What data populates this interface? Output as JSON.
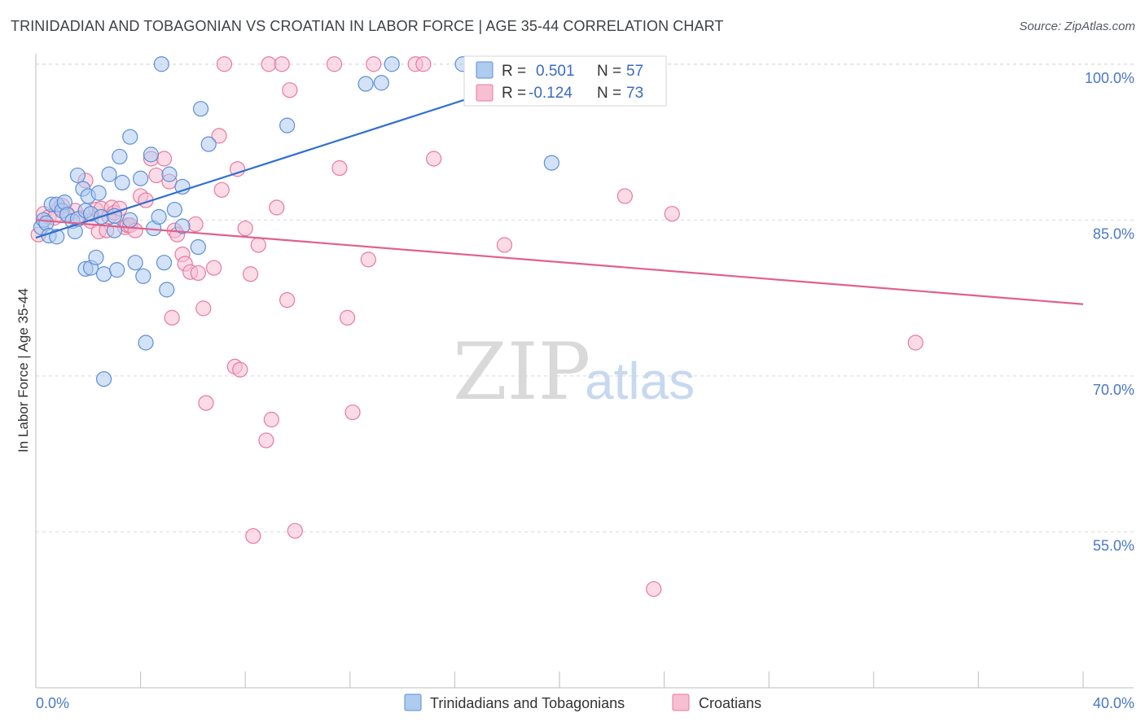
{
  "title": "TRINIDADIAN AND TOBAGONIAN VS CROATIAN IN LABOR FORCE | AGE 35-44 CORRELATION CHART",
  "source": "Source: ZipAtlas.com",
  "watermark": {
    "zip": "ZIP",
    "atlas": "atlas"
  },
  "colors": {
    "blue_fill": "#aecbf0",
    "blue_stroke": "#5b8fd6",
    "blue_line": "#2f6fd0",
    "pink_fill": "#f7bfd2",
    "pink_stroke": "#e8799f",
    "pink_line": "#e0608c"
  },
  "legend": {
    "r_label": "R =",
    "n_label": "N =",
    "blue": {
      "r": "0.501",
      "n": "57"
    },
    "pink": {
      "r": "-0.124",
      "n": "73"
    }
  },
  "chart_data": {
    "type": "scatter",
    "xlabel": "",
    "ylabel": "In Labor Force | Age 35-44",
    "xlim": [
      0,
      40
    ],
    "ylim": [
      40,
      101
    ],
    "x_tick_labels": [
      "0.0%",
      "40.0%"
    ],
    "y_ticks": [
      55,
      70,
      85,
      100
    ],
    "y_tick_labels": [
      "55.0%",
      "70.0%",
      "85.0%",
      "100.0%"
    ],
    "grid": true,
    "legend_position": "top-center",
    "series": [
      {
        "name": "Trinidadians and Tobagonians",
        "color": "#aecbf0",
        "trend": {
          "x": [
            0,
            20
          ],
          "y": [
            83.3,
            99.5
          ]
        },
        "points": [
          [
            0.2,
            84.3
          ],
          [
            0.3,
            85.0
          ],
          [
            0.4,
            84.7
          ],
          [
            0.5,
            83.5
          ],
          [
            0.6,
            86.5
          ],
          [
            0.8,
            86.5
          ],
          [
            0.8,
            83.4
          ],
          [
            1.0,
            85.9
          ],
          [
            1.1,
            86.7
          ],
          [
            1.2,
            85.5
          ],
          [
            1.4,
            84.9
          ],
          [
            1.5,
            83.9
          ],
          [
            1.6,
            89.3
          ],
          [
            1.6,
            85.1
          ],
          [
            1.8,
            88.0
          ],
          [
            1.9,
            85.9
          ],
          [
            1.9,
            80.3
          ],
          [
            2.0,
            87.3
          ],
          [
            2.1,
            85.6
          ],
          [
            2.1,
            80.4
          ],
          [
            2.3,
            81.4
          ],
          [
            2.4,
            87.6
          ],
          [
            2.5,
            85.3
          ],
          [
            2.6,
            69.7
          ],
          [
            2.6,
            79.8
          ],
          [
            2.8,
            89.4
          ],
          [
            3.0,
            85.4
          ],
          [
            3.0,
            84.0
          ],
          [
            3.1,
            80.2
          ],
          [
            3.2,
            91.1
          ],
          [
            3.3,
            88.6
          ],
          [
            3.6,
            85.0
          ],
          [
            3.6,
            93.0
          ],
          [
            3.8,
            80.9
          ],
          [
            4.0,
            89.0
          ],
          [
            4.1,
            79.6
          ],
          [
            4.2,
            73.2
          ],
          [
            4.4,
            91.3
          ],
          [
            4.5,
            84.2
          ],
          [
            4.7,
            85.3
          ],
          [
            4.8,
            100.0
          ],
          [
            4.9,
            80.9
          ],
          [
            5.0,
            78.3
          ],
          [
            5.1,
            89.4
          ],
          [
            5.3,
            86.0
          ],
          [
            5.6,
            88.2
          ],
          [
            5.6,
            84.4
          ],
          [
            6.2,
            82.4
          ],
          [
            6.3,
            95.7
          ],
          [
            6.6,
            92.3
          ],
          [
            9.6,
            94.1
          ],
          [
            12.6,
            98.1
          ],
          [
            13.2,
            98.2
          ],
          [
            13.6,
            100.0
          ],
          [
            16.3,
            100.0
          ],
          [
            17.3,
            100.0
          ],
          [
            19.7,
            90.5
          ]
        ]
      },
      {
        "name": "Croatians",
        "color": "#f7bfd2",
        "trend": {
          "x": [
            0,
            40
          ],
          "y": [
            85.0,
            76.9
          ]
        },
        "points": [
          [
            0.1,
            83.6
          ],
          [
            0.3,
            85.6
          ],
          [
            0.5,
            85.3
          ],
          [
            0.7,
            85.2
          ],
          [
            0.9,
            86.2
          ],
          [
            1.0,
            86.4
          ],
          [
            1.2,
            85.6
          ],
          [
            1.5,
            85.9
          ],
          [
            1.7,
            85.2
          ],
          [
            1.9,
            88.8
          ],
          [
            2.1,
            84.9
          ],
          [
            2.3,
            86.0
          ],
          [
            2.4,
            83.9
          ],
          [
            2.5,
            86.1
          ],
          [
            2.7,
            84.0
          ],
          [
            2.8,
            85.3
          ],
          [
            2.9,
            86.2
          ],
          [
            3.0,
            85.7
          ],
          [
            3.2,
            86.1
          ],
          [
            3.4,
            84.3
          ],
          [
            3.5,
            84.5
          ],
          [
            3.6,
            84.5
          ],
          [
            3.8,
            84.0
          ],
          [
            4.0,
            87.3
          ],
          [
            4.2,
            86.9
          ],
          [
            4.4,
            90.9
          ],
          [
            4.6,
            89.3
          ],
          [
            4.9,
            90.9
          ],
          [
            5.1,
            88.7
          ],
          [
            5.2,
            75.6
          ],
          [
            5.3,
            84.0
          ],
          [
            5.4,
            83.6
          ],
          [
            5.6,
            81.7
          ],
          [
            5.7,
            80.8
          ],
          [
            5.9,
            80.0
          ],
          [
            6.1,
            84.6
          ],
          [
            6.2,
            79.9
          ],
          [
            6.4,
            76.5
          ],
          [
            6.5,
            67.4
          ],
          [
            6.8,
            80.4
          ],
          [
            7.0,
            93.1
          ],
          [
            7.1,
            87.9
          ],
          [
            7.2,
            100.0
          ],
          [
            7.6,
            70.9
          ],
          [
            7.7,
            89.9
          ],
          [
            7.8,
            70.6
          ],
          [
            8.0,
            84.2
          ],
          [
            8.2,
            79.8
          ],
          [
            8.3,
            54.6
          ],
          [
            8.5,
            82.6
          ],
          [
            8.8,
            63.8
          ],
          [
            8.9,
            100.0
          ],
          [
            9.0,
            65.8
          ],
          [
            9.2,
            86.2
          ],
          [
            9.4,
            100.0
          ],
          [
            9.6,
            77.3
          ],
          [
            9.7,
            97.5
          ],
          [
            9.9,
            55.1
          ],
          [
            11.4,
            100.0
          ],
          [
            11.6,
            90.0
          ],
          [
            11.9,
            75.6
          ],
          [
            12.1,
            66.5
          ],
          [
            12.7,
            81.2
          ],
          [
            12.9,
            100.0
          ],
          [
            14.5,
            100.0
          ],
          [
            14.8,
            100.0
          ],
          [
            15.2,
            90.9
          ],
          [
            17.7,
            100.0
          ],
          [
            17.9,
            82.6
          ],
          [
            22.5,
            87.3
          ],
          [
            23.6,
            49.5
          ],
          [
            24.3,
            85.6
          ],
          [
            33.6,
            73.2
          ]
        ]
      }
    ]
  }
}
